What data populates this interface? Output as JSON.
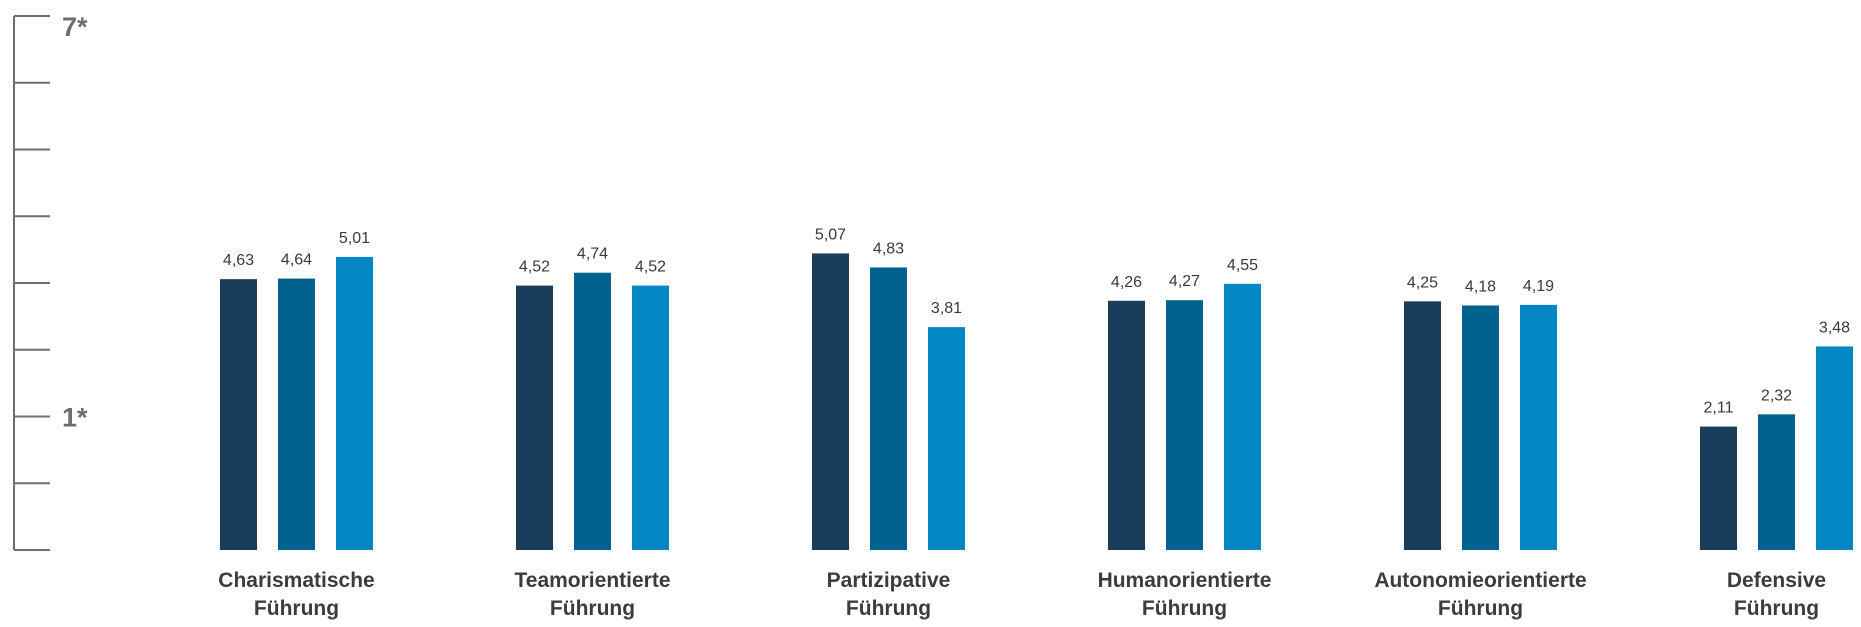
{
  "chart_data": {
    "type": "bar",
    "categories": [
      [
        "Charismatische",
        "Führung"
      ],
      [
        "Teamorientierte",
        "Führung"
      ],
      [
        "Partizipative",
        "Führung"
      ],
      [
        "Humanorientierte",
        "Führung"
      ],
      [
        "Autonomieorientierte",
        "Führung"
      ],
      [
        "Defensive",
        "Führung"
      ]
    ],
    "series": [
      {
        "color": "#1a3d5c",
        "values": [
          4.63,
          4.52,
          5.07,
          4.26,
          4.25,
          2.11
        ],
        "labels": [
          "4,63",
          "4,52",
          "5,07",
          "4,26",
          "4,25",
          "2,11"
        ]
      },
      {
        "color": "#02628f",
        "values": [
          4.64,
          4.74,
          4.83,
          4.27,
          4.18,
          2.32
        ],
        "labels": [
          "4,64",
          "4,74",
          "4,83",
          "4,27",
          "4,18",
          "2,32"
        ]
      },
      {
        "color": "#0287c3",
        "values": [
          5.01,
          4.52,
          3.81,
          4.55,
          4.19,
          3.48
        ],
        "labels": [
          "5,01",
          "4,52",
          "3,81",
          "4,55",
          "4,19",
          "3,48"
        ]
      }
    ],
    "y_axis": {
      "top_label": "7*",
      "bottom_label": "1*",
      "top_value": 7,
      "bottom_value": 1
    },
    "ylim": [
      0,
      7
    ],
    "grid": false,
    "legend": "none"
  }
}
